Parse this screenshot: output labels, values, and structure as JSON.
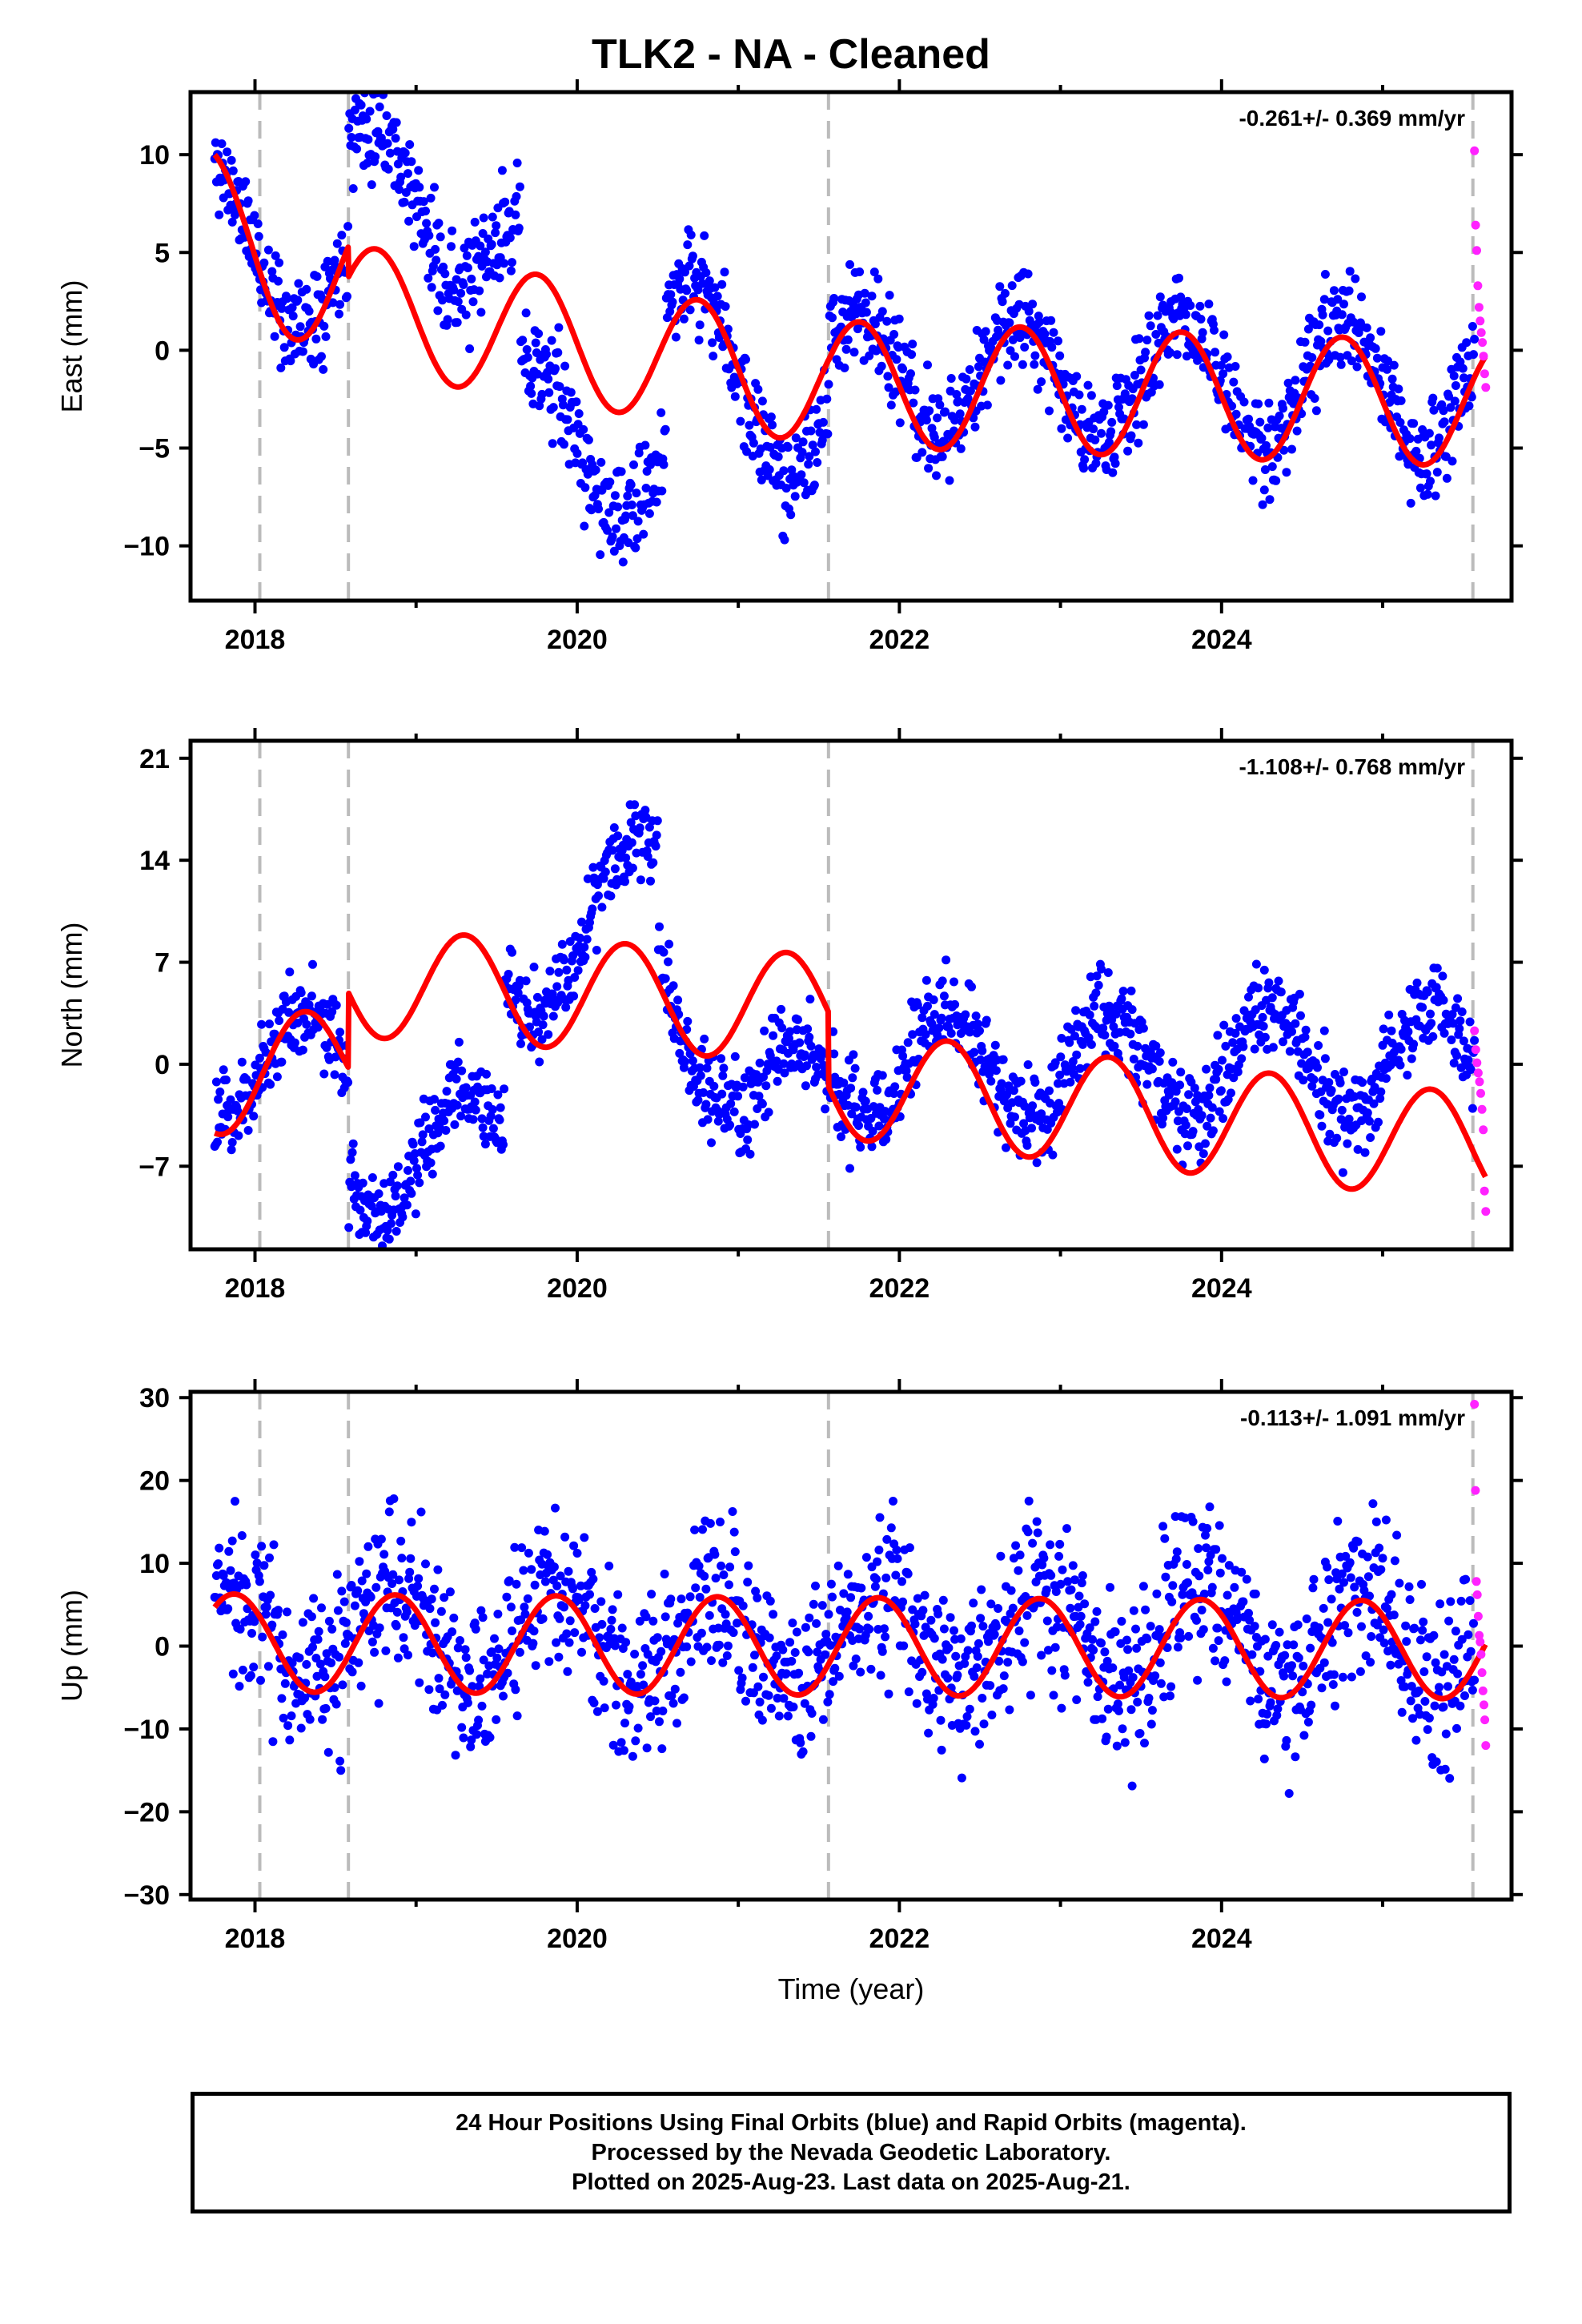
{
  "title": "TLK2  - NA - Cleaned",
  "footer": {
    "line1": "24 Hour Positions Using Final Orbits (blue) and Rapid Orbits (magenta).",
    "line2": "Processed by the Nevada Geodetic Laboratory.",
    "line3": "Plotted on 2025-Aug-23. Last data on 2025-Aug-21."
  },
  "colors": {
    "final_orbits": "#0000ff",
    "rapid_orbits": "#ff22ff",
    "model_fit": "#ff0000",
    "event_lines": "#bbbbbb"
  },
  "chart_data": [
    {
      "type": "scatter",
      "ylabel": "East (mm)",
      "xlabel": "",
      "xlim": [
        2017.6,
        2025.8
      ],
      "ylim": [
        -12.8,
        13.2
      ],
      "yticks": [
        10,
        5,
        0,
        -5,
        -10
      ],
      "ytick_labels": [
        "10",
        "5",
        "0",
        "−5",
        "−10"
      ],
      "xticks": [
        2018,
        2020,
        2022,
        2024
      ],
      "xtick_labels": [
        "2018",
        "2020",
        "2022",
        "2024"
      ],
      "rate_label": "-0.261+/- 0.369 mm/yr",
      "event_lines": [
        2018.03,
        2018.58,
        2021.56,
        2025.56
      ],
      "model": {
        "start": 2017.75,
        "end": 2025.64,
        "amplitude": 3.2,
        "peak_phase": 0.75,
        "segments": [
          {
            "from": 2017.75,
            "to": 2018.58,
            "a": 6.8,
            "b": -9.8,
            "c": 7.4
          },
          {
            "from": 2018.58,
            "to": 2021.56,
            "a": 2.2,
            "b": -1.3,
            "c": 0.0
          },
          {
            "from": 2021.56,
            "to": 2025.64,
            "a": -1.7,
            "b": -0.26,
            "c": 0.0
          }
        ]
      },
      "observations": {
        "seed": 11,
        "noise": 1.3,
        "step_days": 2,
        "offsets": [
          {
            "from": 2017.75,
            "to": 2018.58,
            "a": 6.2,
            "b": -4.6,
            "c": 2.4
          },
          {
            "from": 2018.58,
            "to": 2019.65,
            "a": 9.2,
            "b": -4.1,
            "c": 0.0
          },
          {
            "from": 2019.65,
            "to": 2020.55,
            "a": -3.6,
            "b": -3.0,
            "c": 0.0
          },
          {
            "from": 2020.55,
            "to": 2021.56,
            "a": 1.6,
            "b": -6.5,
            "c": 0.0
          },
          {
            "from": 2021.56,
            "to": 2025.64,
            "a": -1.0,
            "b": -0.26,
            "c": 0.0
          }
        ]
      },
      "rapid": {
        "from": 2025.57,
        "to": 2025.64,
        "values": [
          10.2,
          6.4,
          5.1,
          3.3,
          2.2,
          1.5,
          0.9,
          0.4,
          -0.3,
          -1.2,
          -1.9
        ]
      }
    },
    {
      "type": "scatter",
      "ylabel": "North (mm)",
      "xlabel": "",
      "xlim": [
        2017.6,
        2025.8
      ],
      "ylim": [
        -12.7,
        22.2
      ],
      "yticks": [
        21,
        14,
        7,
        0,
        -7
      ],
      "ytick_labels": [
        "21",
        "14",
        "7",
        "0",
        "−7"
      ],
      "xticks": [
        2018,
        2020,
        2022,
        2024
      ],
      "xtick_labels": [
        "2018",
        "2020",
        "2022",
        "2024"
      ],
      "rate_label": "-1.108+/- 0.768 mm/yr",
      "event_lines": [
        2018.03,
        2018.58,
        2021.56,
        2025.56
      ],
      "model": {
        "start": 2017.75,
        "end": 2025.64,
        "amplitude": 3.7,
        "peak_phase": 0.3,
        "segments": [
          {
            "from": 2017.75,
            "to": 2018.58,
            "a": -1.2,
            "b": 2.0,
            "c": 0.0
          },
          {
            "from": 2018.58,
            "to": 2021.56,
            "a": 5.6,
            "b": -0.6,
            "c": 0.0
          },
          {
            "from": 2021.56,
            "to": 2025.64,
            "a": -1.3,
            "b": -1.1,
            "c": 0.0
          }
        ]
      },
      "observations": {
        "seed": 23,
        "noise": 1.5,
        "step_days": 2,
        "offsets": [
          {
            "from": 2017.75,
            "to": 2018.58,
            "a": 0.0,
            "b": 0.0,
            "c": 0.0
          },
          {
            "from": 2018.58,
            "to": 2019.55,
            "a": -7.0,
            "b": 2.0,
            "c": 0.0
          },
          {
            "from": 2019.55,
            "to": 2020.5,
            "a": 5.0,
            "b": 9.0,
            "c": 0.0
          },
          {
            "from": 2020.5,
            "to": 2021.0,
            "a": 7.0,
            "b": -16.0,
            "c": 0.0
          },
          {
            "from": 2021.0,
            "to": 2021.56,
            "a": -4.0,
            "b": 6.0,
            "c": 0.0
          },
          {
            "from": 2021.56,
            "to": 2025.64,
            "a": 0.0,
            "b": 0.0,
            "c": 0.0
          }
        ]
      },
      "rapid": {
        "from": 2025.57,
        "to": 2025.64,
        "values": [
          2.3,
          1.0,
          0.1,
          -0.6,
          -1.2,
          -2.0,
          -3.1,
          -4.5,
          -8.7,
          -10.1
        ]
      }
    },
    {
      "type": "scatter",
      "ylabel": "Up (mm)",
      "xlabel": "Time (year)",
      "xlim": [
        2017.6,
        2025.8
      ],
      "ylim": [
        -30.6,
        30.7
      ],
      "yticks": [
        30,
        20,
        10,
        0,
        -10,
        -20,
        -30
      ],
      "ytick_labels": [
        "30",
        "20",
        "10",
        "0",
        "−10",
        "−20",
        "−30"
      ],
      "xticks": [
        2018,
        2020,
        2022,
        2024
      ],
      "xtick_labels": [
        "2018",
        "2020",
        "2022",
        "2024"
      ],
      "rate_label": "-0.113+/- 1.091 mm/yr",
      "event_lines": [
        2018.03,
        2018.58,
        2021.56,
        2025.56
      ],
      "model": {
        "start": 2017.75,
        "end": 2025.64,
        "amplitude": 5.9,
        "peak_phase": 0.87,
        "segments": [
          {
            "from": 2017.75,
            "to": 2025.64,
            "a": 0.4,
            "b": -0.11,
            "c": 0.0
          }
        ]
      },
      "observations": {
        "seed": 37,
        "noise": 5.0,
        "step_days": 2,
        "offsets": [
          {
            "from": 2017.75,
            "to": 2025.64,
            "a": 1.2,
            "b": 0.0,
            "c": 0.0
          }
        ]
      },
      "rapid": {
        "from": 2025.57,
        "to": 2025.64,
        "values": [
          29.2,
          18.8,
          7.8,
          6.2,
          3.6,
          1.3,
          0.5,
          -1.0,
          -3.2,
          -5.4,
          -7.1,
          -8.9,
          -12.0
        ]
      }
    }
  ]
}
